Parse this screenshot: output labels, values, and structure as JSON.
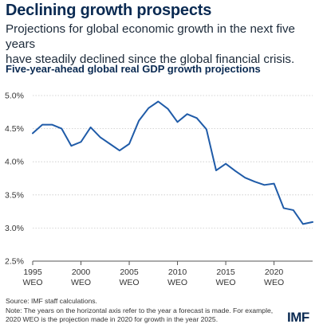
{
  "header": {
    "title": "Declining growth prospects",
    "subtitle_line1": "Projections for global economic growth in the next five years",
    "subtitle_line2": "have steadily declined since the global financial crisis."
  },
  "chart_data": {
    "type": "line",
    "title": "Five-year-ahead global real GDP growth projections",
    "x": [
      1995,
      1996,
      1997,
      1998,
      1999,
      2000,
      2001,
      2002,
      2003,
      2004,
      2005,
      2006,
      2007,
      2008,
      2009,
      2010,
      2011,
      2012,
      2013,
      2014,
      2015,
      2016,
      2017,
      2018,
      2019,
      2020,
      2021,
      2022,
      2023,
      2024
    ],
    "series": [
      {
        "values": [
          4.43,
          4.56,
          4.56,
          4.5,
          4.24,
          4.3,
          4.52,
          4.37,
          4.27,
          4.17,
          4.27,
          4.62,
          4.81,
          4.91,
          4.8,
          4.6,
          4.72,
          4.66,
          4.49,
          3.87,
          3.97,
          3.86,
          3.76,
          3.7,
          3.65,
          3.67,
          3.3,
          3.27,
          3.06,
          3.09
        ]
      }
    ],
    "xlim": [
      1995,
      2024
    ],
    "ylim": [
      2.5,
      5.0
    ],
    "xticks": [
      1995,
      2000,
      2005,
      2010,
      2015,
      2020
    ],
    "xtick_labels_line1": [
      "1995",
      "2000",
      "2005",
      "2010",
      "2015",
      "2020"
    ],
    "xtick_labels_line2": [
      "WEO",
      "WEO",
      "WEO",
      "WEO",
      "WEO",
      "WEO"
    ],
    "yticks": [
      2.5,
      3.0,
      3.5,
      4.0,
      4.5,
      5.0
    ],
    "ytick_labels": [
      "2.5%",
      "3.0%",
      "3.5%",
      "4.0%",
      "4.5%",
      "5.0%"
    ],
    "grid": true,
    "line_color": "#1f5ba8",
    "grid_color": "#c8c8c8"
  },
  "footer": {
    "source": "Source: IMF staff calculations.",
    "note_line1": "Note: The years on the horizontal axis refer to the year a forecast is made. For example,",
    "note_line2": "2020 WEO is the projection made in 2020 for growth in the year 2025.",
    "logo_text": "IMF"
  }
}
